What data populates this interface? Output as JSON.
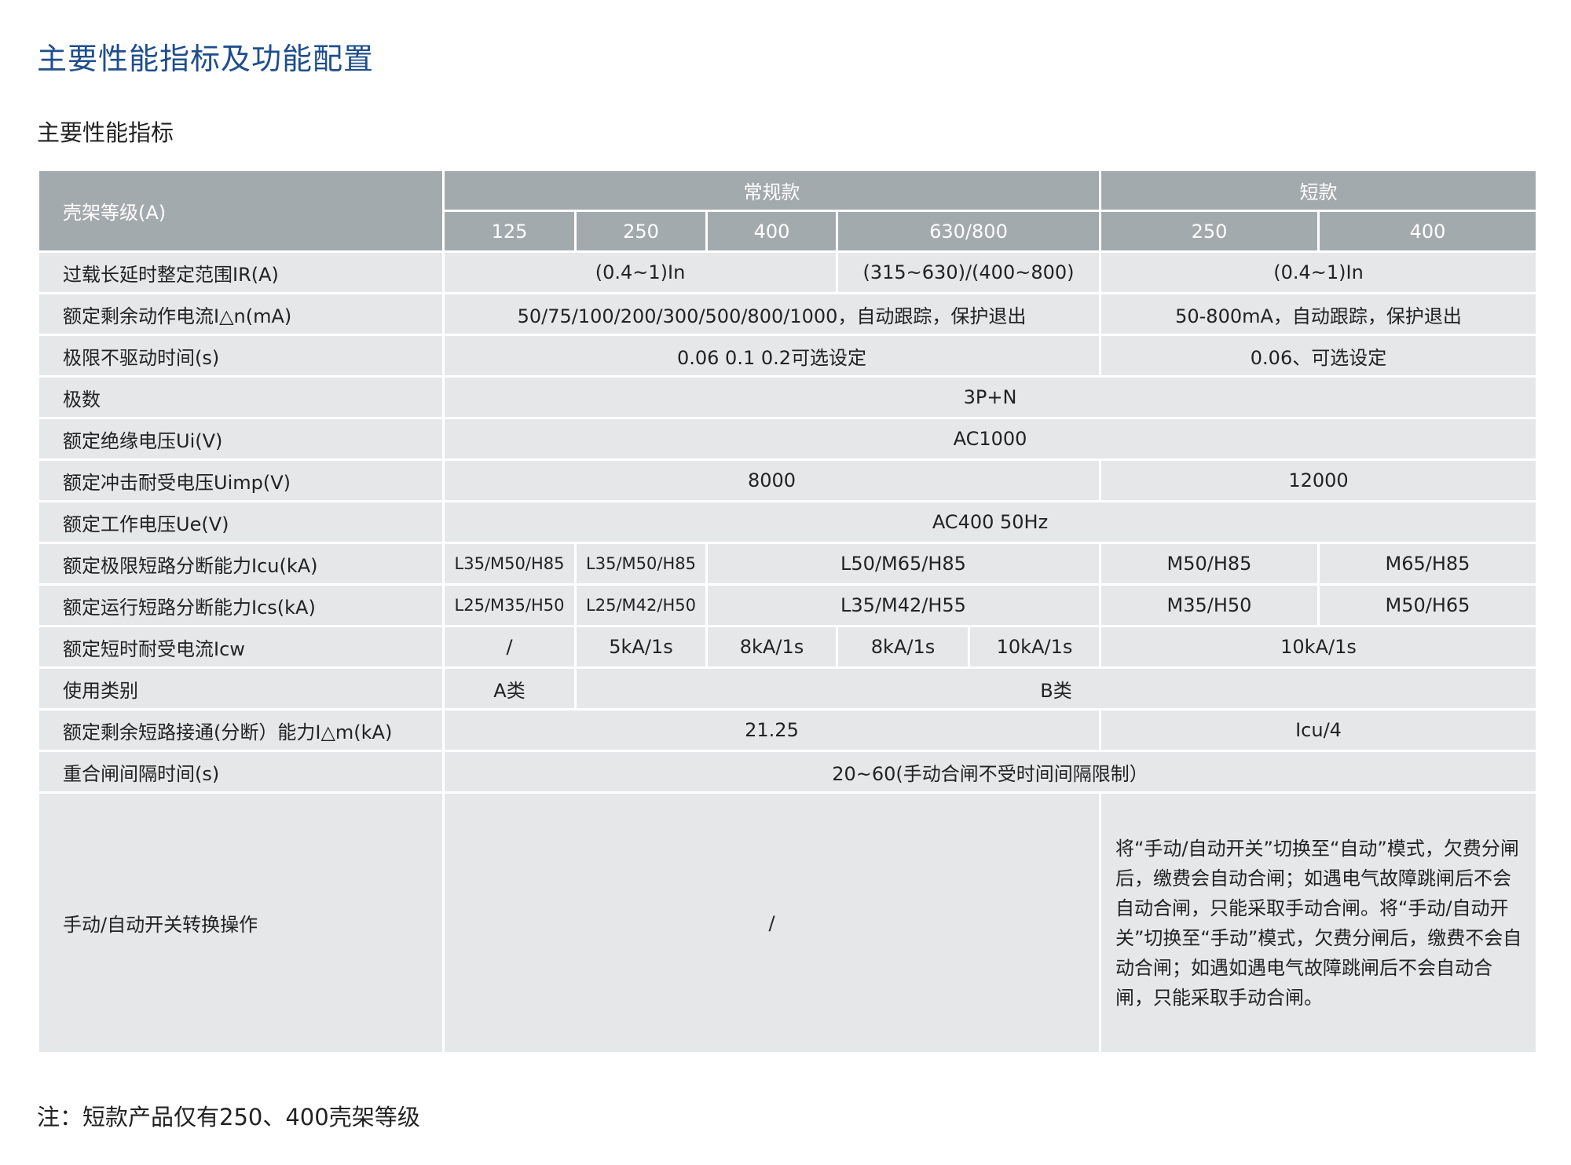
{
  "title": "主要性能指标及功能配置",
  "subtitle": "主要性能指标",
  "note": "注：短款产品仅有250、400壳架等级",
  "colors": {
    "title": "#1f4e8c",
    "header_bg": "#a3aaae",
    "row_bg": "#e6e7e9"
  },
  "header": {
    "frame_label": "壳架等级(A)",
    "group_regular": "常规款",
    "group_short": "短款",
    "ratings": [
      "125",
      "250",
      "400",
      "630/800",
      "250",
      "400"
    ]
  },
  "rows": [
    {
      "label": "过载长延时整定范围IR(A)",
      "cells": [
        {
          "text": "(0.4~1)In",
          "span": 3
        },
        {
          "text": "(315~630)/(400~800)",
          "span": 2
        },
        {
          "text": "(0.4~1)In",
          "span": 2
        }
      ]
    },
    {
      "label": "额定剩余动作电流I△n(mA)",
      "cells": [
        {
          "text": "50/75/100/200/300/500/800/1000，自动跟踪，保护退出",
          "span": 5
        },
        {
          "text": "50-800mA，自动跟踪，保护退出",
          "span": 2
        }
      ]
    },
    {
      "label": "极限不驱动时间(s)",
      "cells": [
        {
          "text": "0.06  0.1  0.2可选设定",
          "span": 5
        },
        {
          "text": "0.06、可选设定",
          "span": 2
        }
      ]
    },
    {
      "label": "极数",
      "cells": [
        {
          "text": "3P+N",
          "span": 7
        }
      ]
    },
    {
      "label": "额定绝缘电压Ui(V)",
      "cells": [
        {
          "text": "AC1000",
          "span": 7
        }
      ]
    },
    {
      "label": "额定冲击耐受电压Uimp(V)",
      "cells": [
        {
          "text": "8000",
          "span": 5
        },
        {
          "text": "12000",
          "span": 2
        }
      ]
    },
    {
      "label": "额定工作电压Ue(V)",
      "cells": [
        {
          "text": "AC400    50Hz",
          "span": 7
        }
      ]
    },
    {
      "label": "额定极限短路分断能力Icu(kA)",
      "cells": [
        {
          "text": "L35/M50/H85",
          "span": 1,
          "small": true
        },
        {
          "text": "L35/M50/H85",
          "span": 1,
          "small": true
        },
        {
          "text": "L50/M65/H85",
          "span": 3
        },
        {
          "text": "M50/H85",
          "span": 1
        },
        {
          "text": "M65/H85",
          "span": 1
        }
      ]
    },
    {
      "label": "额定运行短路分断能力Ics(kA)",
      "cells": [
        {
          "text": "L25/M35/H50",
          "span": 1,
          "small": true
        },
        {
          "text": "L25/M42/H50",
          "span": 1,
          "small": true
        },
        {
          "text": "L35/M42/H55",
          "span": 3
        },
        {
          "text": "M35/H50",
          "span": 1
        },
        {
          "text": "M50/H65",
          "span": 1
        }
      ]
    },
    {
      "label": "额定短时耐受电流Icw",
      "cells": [
        {
          "text": "/",
          "span": 1
        },
        {
          "text": "5kA/1s",
          "span": 1
        },
        {
          "text": "8kA/1s",
          "span": 1
        },
        {
          "text": "8kA/1s",
          "span": 1
        },
        {
          "text": "10kA/1s",
          "span": 1
        },
        {
          "text": "10kA/1s",
          "span": 2
        }
      ]
    },
    {
      "label": "使用类别",
      "cells": [
        {
          "text": "A类",
          "span": 1
        },
        {
          "text": "B类",
          "span": 6
        }
      ]
    },
    {
      "label": "额定剩余短路接通(分断）能力I△m(kA)",
      "cells": [
        {
          "text": "21.25",
          "span": 5
        },
        {
          "text": "Icu/4",
          "span": 2
        }
      ]
    },
    {
      "label": "重合闸间隔时间(s)",
      "cells": [
        {
          "text": "20~60(手动合闸不受时间间隔限制）",
          "span": 7
        }
      ]
    },
    {
      "label": "手动/自动开关转换操作",
      "cells": [
        {
          "text": "/",
          "span": 5
        },
        {
          "text": "将“手动/自动开关”切换至“自动”模式，欠费分闸后，缴费会自动合闸；如遇电气故障跳闸后不会自动合闸，只能采取手动合闸。将“手动/自动开关”切换至“手动”模式，欠费分闸后，缴费不会自动合闸；如遇如遇电气故障跳闸后不会自动合闸，只能采取手动合闸。",
          "span": 2,
          "para": true
        }
      ]
    }
  ]
}
